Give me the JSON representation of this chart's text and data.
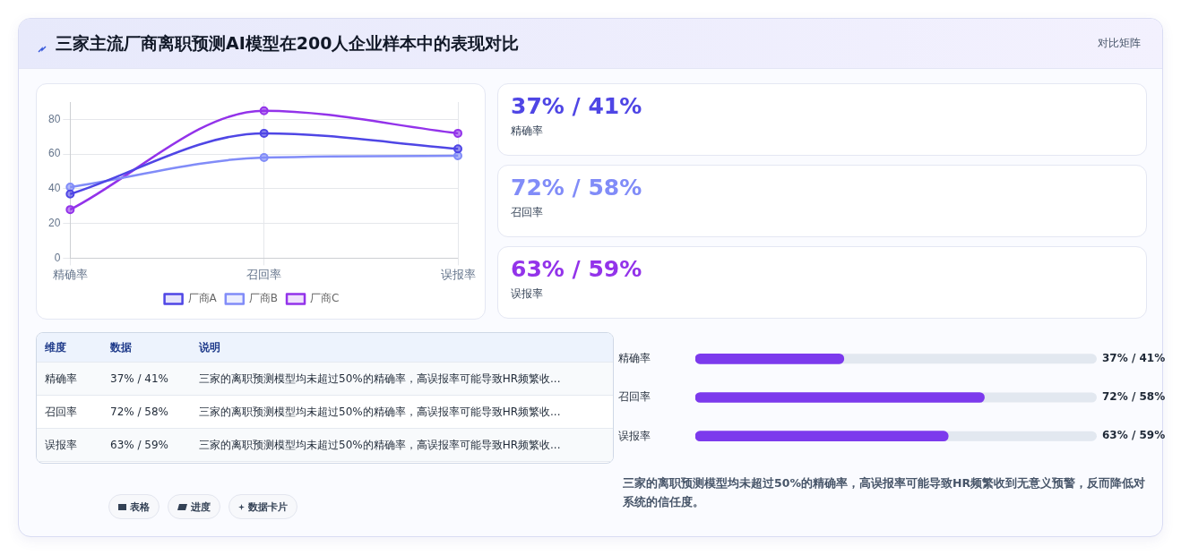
{
  "chart_data": [
    {
      "type": "other",
      "title": "三家主流厂商离职预测AI模型在200人企业样本中的表现对比",
      "subtitle": "对比矩阵"
    },
    {
      "type": "line",
      "categories": [
        "精确率",
        "召回率",
        "误报率"
      ],
      "series": [
        {
          "name": "厂商A",
          "color": "#4f46e5",
          "values": [
            37,
            72,
            63
          ]
        },
        {
          "name": "厂商B",
          "color": "#818cf8",
          "values": [
            41,
            58,
            59
          ]
        },
        {
          "name": "厂商C",
          "color": "#9333ea",
          "values": [
            28,
            85,
            72
          ]
        }
      ],
      "ylim": [
        0,
        90
      ],
      "yticks": [
        0,
        20,
        40,
        60,
        80
      ],
      "grid": true,
      "legend": "bottom",
      "marker": "circle",
      "line_style": "solid"
    },
    {
      "type": "other",
      "annotations": [
        "37% / 41%",
        "精确率",
        "72% / 58%",
        "召回率",
        "63% / 59%",
        "误报率"
      ],
      "colors": [
        "#4f46e5",
        "#818cf8",
        "#9333ea"
      ]
    },
    {
      "type": "other",
      "annotations": [
        "维度",
        "数据",
        "说明",
        "精确率",
        "37% / 41%",
        "三家的离职预测模型均未超过50%的精确率，高误报率可能导致HR频繁收...",
        "召回率",
        "72% / 58%",
        "三家的离职预测模型均未超过50%的精确率，高误报率可能导致HR频繁收...",
        "误报率",
        "63% / 59%",
        "三家的离职预测模型均未超过50%的精确率，高误报率可能导致HR频繁收..."
      ]
    },
    {
      "type": "bar",
      "orientation": "horizontal",
      "categories": [
        "精确率",
        "召回率",
        "误报率"
      ],
      "values": [
        37,
        72,
        63
      ],
      "color": "#7c3aed",
      "xlim": [
        0,
        100
      ],
      "value_labels": [
        "37% / 41%",
        "72% / 58%",
        "63% / 59%"
      ],
      "annotations": [
        "三家的离职预测模型均未超过50%的精确率，高误报率可能导致HR频繁收到无意义预警，反而降低对系统的信任度。"
      ]
    },
    {
      "type": "other",
      "annotations": [
        "表格",
        "进度",
        "数据卡片"
      ]
    }
  ]
}
